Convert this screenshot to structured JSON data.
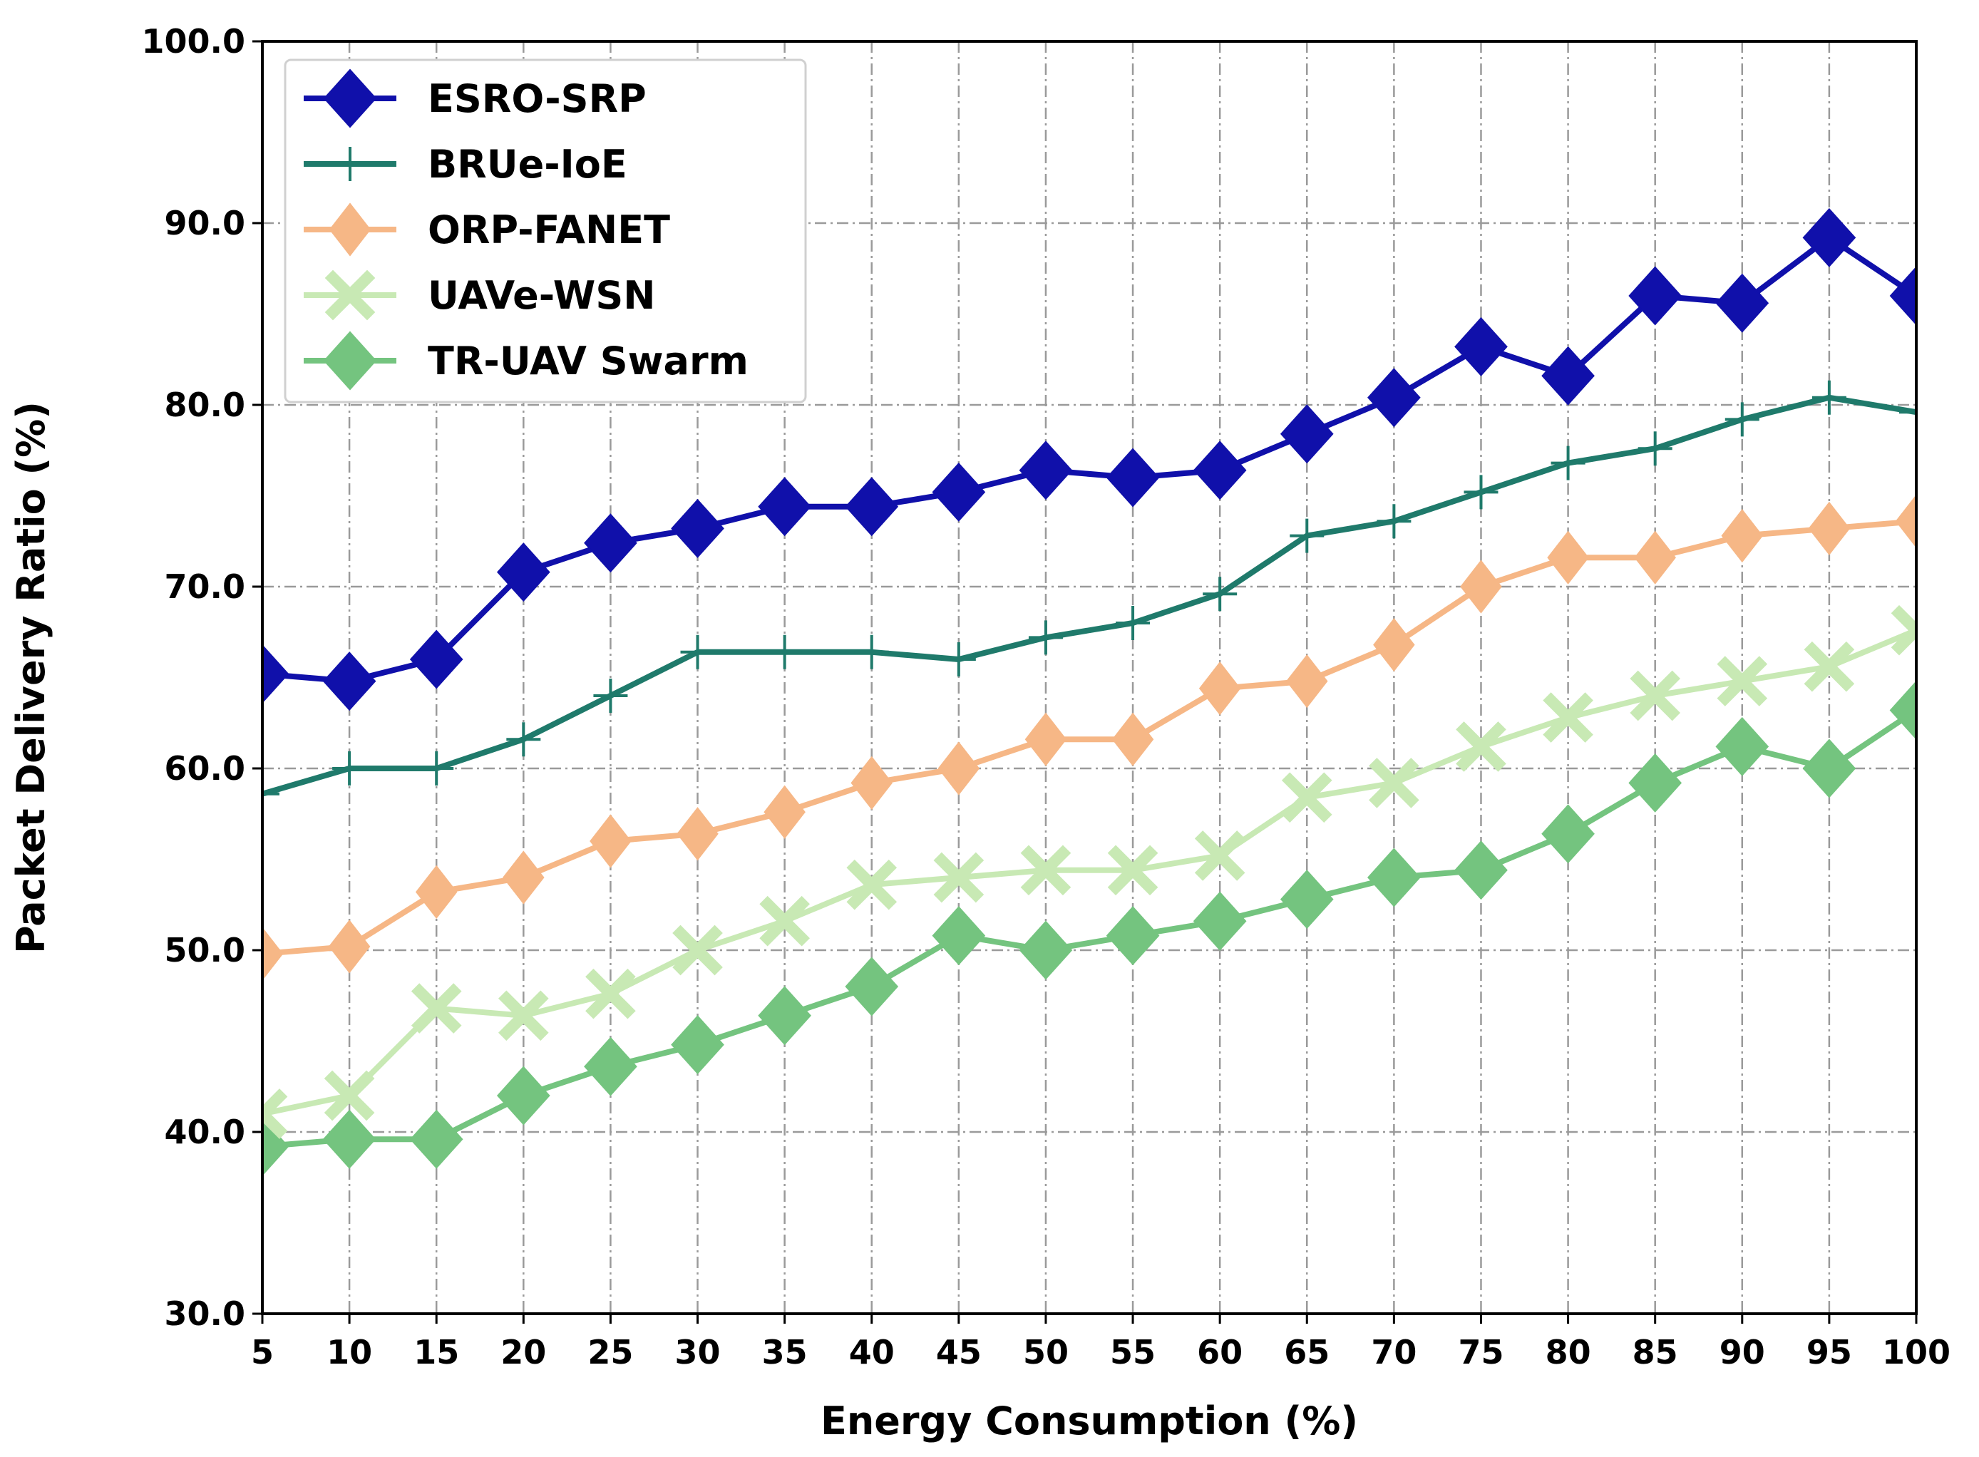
{
  "chart_data": {
    "type": "line",
    "title": "",
    "xlabel": "Energy Consumption (%)",
    "ylabel": "Packet Delivery Ratio (%)",
    "xlim": [
      5,
      100
    ],
    "ylim": [
      30,
      100
    ],
    "grid": true,
    "legend_position": "top-left",
    "x": [
      5,
      10,
      15,
      20,
      25,
      30,
      35,
      40,
      45,
      50,
      55,
      60,
      65,
      70,
      75,
      80,
      85,
      90,
      95,
      100
    ],
    "xticks": [
      "5",
      "10",
      "15",
      "20",
      "25",
      "30",
      "35",
      "40",
      "45",
      "50",
      "55",
      "60",
      "65",
      "70",
      "75",
      "80",
      "85",
      "90",
      "95",
      "100"
    ],
    "yticks": [
      "30.0",
      "40.0",
      "50.0",
      "60.0",
      "70.0",
      "80.0",
      "90.0",
      "100.0"
    ],
    "series": [
      {
        "name": "ESRO-SRP",
        "color": "#1010aa",
        "marker": "diamond",
        "values": [
          65.2,
          64.8,
          66.0,
          70.8,
          72.4,
          73.2,
          74.4,
          74.4,
          75.2,
          76.4,
          76.0,
          76.4,
          78.4,
          80.4,
          83.2,
          81.6,
          86.0,
          85.6,
          89.2,
          86.0
        ]
      },
      {
        "name": "BRUe-IoE",
        "color": "#1f7a6b",
        "marker": "plus",
        "values": [
          58.6,
          60.0,
          60.0,
          61.6,
          64.0,
          66.4,
          66.4,
          66.4,
          66.0,
          67.2,
          68.0,
          69.6,
          72.8,
          73.6,
          75.2,
          76.8,
          77.6,
          79.2,
          80.4,
          79.6
        ]
      },
      {
        "name": "ORP-FANET",
        "color": "#f6b786",
        "marker": "diamond-thin",
        "values": [
          49.8,
          50.2,
          53.2,
          54.0,
          56.0,
          56.4,
          57.6,
          59.2,
          60.0,
          61.6,
          61.6,
          64.4,
          64.8,
          66.8,
          70.0,
          71.6,
          71.6,
          72.8,
          73.2,
          73.6
        ]
      },
      {
        "name": "UAVe-WSN",
        "color": "#c8e9b4",
        "marker": "x",
        "values": [
          41.0,
          42.0,
          46.8,
          46.4,
          47.6,
          50.0,
          51.6,
          53.6,
          54.0,
          54.4,
          54.4,
          55.2,
          58.4,
          59.2,
          61.2,
          62.8,
          64.0,
          64.8,
          65.6,
          67.6
        ]
      },
      {
        "name": "TR-UAV Swarm",
        "color": "#74c47f",
        "marker": "diamond",
        "values": [
          39.2,
          39.6,
          39.6,
          42.0,
          43.6,
          44.8,
          46.4,
          48.0,
          50.8,
          50.0,
          50.8,
          51.6,
          52.8,
          54.0,
          54.4,
          56.4,
          59.2,
          61.2,
          60.0,
          63.2
        ]
      }
    ]
  }
}
